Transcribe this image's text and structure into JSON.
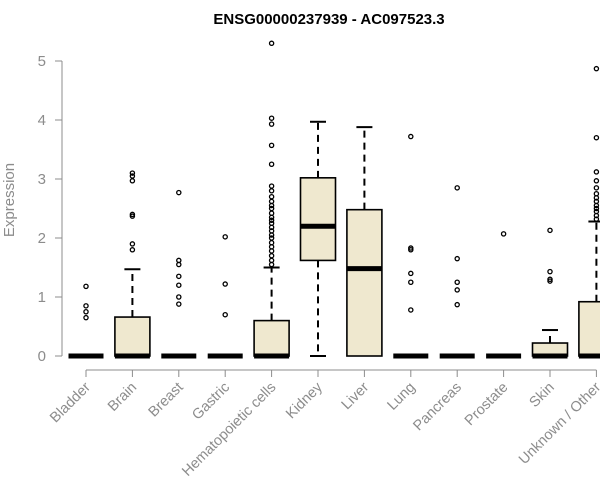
{
  "chart_data": {
    "type": "boxplot",
    "title": "ENSG00000237939 - AC097523.3",
    "xlabel": "",
    "ylabel": "Expression",
    "ylim": [
      0,
      5
    ],
    "yticks": [
      0,
      1,
      2,
      3,
      4,
      5
    ],
    "grid": false,
    "colors": {
      "box_fill": "#efe8cf",
      "box_stroke": "#000000",
      "axis": "#8c8c8c"
    },
    "categories": [
      "Bladder",
      "Brain",
      "Breast",
      "Gastric",
      "Hematopoietic cells",
      "Kidney",
      "Liver",
      "Lung",
      "Pancreas",
      "Prostate",
      "Skin",
      "Unknown / Other"
    ],
    "boxes": [
      {
        "category": "Bladder",
        "whisker_low": 0,
        "q1": 0,
        "median": 0,
        "q3": 0,
        "whisker_high": 0,
        "outliers": [
          0.65,
          0.75,
          0.85,
          1.18
        ]
      },
      {
        "category": "Brain",
        "whisker_low": 0,
        "q1": 0,
        "median": 0,
        "q3": 0.66,
        "whisker_high": 1.47,
        "outliers": [
          1.8,
          1.9,
          2.37,
          2.4,
          2.97,
          3.05,
          3.1
        ]
      },
      {
        "category": "Breast",
        "whisker_low": 0,
        "q1": 0,
        "median": 0,
        "q3": 0,
        "whisker_high": 0,
        "outliers": [
          0.88,
          1.0,
          1.2,
          1.35,
          1.55,
          1.62,
          2.77
        ]
      },
      {
        "category": "Gastric",
        "whisker_low": 0,
        "q1": 0,
        "median": 0,
        "q3": 0,
        "whisker_high": 0,
        "outliers": [
          0.7,
          1.22,
          2.02
        ]
      },
      {
        "category": "Hematopoietic cells",
        "whisker_low": 0,
        "q1": 0,
        "median": 0,
        "q3": 0.6,
        "whisker_high": 1.5,
        "outliers": [
          1.55,
          1.62,
          1.7,
          1.78,
          1.85,
          1.92,
          2.0,
          2.05,
          2.12,
          2.18,
          2.25,
          2.3,
          2.35,
          2.42,
          2.5,
          2.55,
          2.62,
          2.7,
          2.8,
          2.88,
          3.25,
          3.57,
          3.93,
          4.03,
          5.3
        ]
      },
      {
        "category": "Kidney",
        "whisker_low": 0,
        "q1": 1.62,
        "median": 2.2,
        "q3": 3.02,
        "whisker_high": 3.97,
        "outliers": []
      },
      {
        "category": "Liver",
        "whisker_low": 0,
        "q1": 0,
        "median": 1.48,
        "q3": 2.48,
        "whisker_high": 3.88,
        "outliers": []
      },
      {
        "category": "Lung",
        "whisker_low": 0,
        "q1": 0,
        "median": 0,
        "q3": 0,
        "whisker_high": 0,
        "outliers": [
          0.78,
          1.25,
          1.4,
          1.8,
          1.83,
          3.72
        ]
      },
      {
        "category": "Pancreas",
        "whisker_low": 0,
        "q1": 0,
        "median": 0,
        "q3": 0,
        "whisker_high": 0,
        "outliers": [
          0.87,
          1.12,
          1.25,
          1.65,
          2.85
        ]
      },
      {
        "category": "Prostate",
        "whisker_low": 0,
        "q1": 0,
        "median": 0,
        "q3": 0,
        "whisker_high": 0,
        "outliers": [
          2.07
        ]
      },
      {
        "category": "Skin",
        "whisker_low": 0,
        "q1": 0,
        "median": 0,
        "q3": 0.22,
        "whisker_high": 0.44,
        "outliers": [
          1.27,
          1.3,
          1.43,
          2.13
        ]
      },
      {
        "category": "Unknown / Other",
        "whisker_low": 0,
        "q1": 0,
        "median": 0,
        "q3": 0.92,
        "whisker_high": 2.28,
        "outliers": [
          2.32,
          2.38,
          2.45,
          2.5,
          2.55,
          2.62,
          2.68,
          2.75,
          2.85,
          2.97,
          3.12,
          3.7,
          4.87
        ]
      }
    ]
  }
}
